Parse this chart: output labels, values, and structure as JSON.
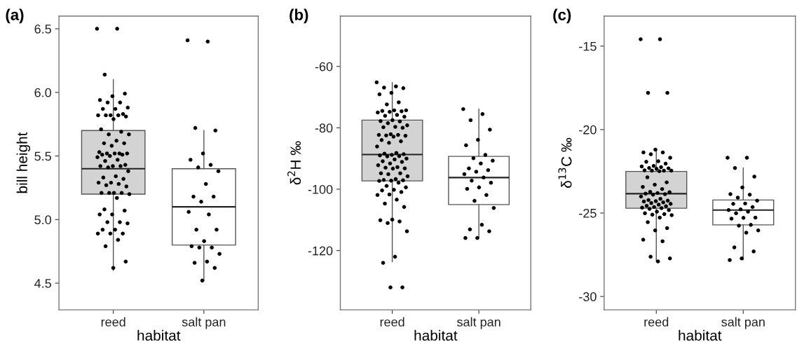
{
  "chart_data": [
    {
      "type": "box",
      "title": "(a)",
      "xlabel": "habitat",
      "ylabel": "bill height",
      "categories": [
        "reed",
        "salt pan"
      ],
      "colors": [
        "#d3d3d3",
        "#ffffff"
      ],
      "boxes": [
        {
          "low": 4.6,
          "q1": 5.2,
          "median": 5.4,
          "q3": 5.7,
          "high": 6.1
        },
        {
          "low": 4.52,
          "q1": 4.8,
          "median": 5.1,
          "q3": 5.4,
          "high": 5.7
        }
      ],
      "ylim": [
        4.29,
        6.6
      ],
      "yticks": [
        4.5,
        {
          "value": 5,
          "label": "5.0"
        },
        5.5,
        {
          "value": 6,
          "label": "6.0"
        },
        6.5
      ],
      "grid": false,
      "series": [
        {
          "type": "scatter",
          "color": "#000000",
          "x": [
            "reed",
            "reed",
            "reed",
            "reed",
            "reed",
            "reed",
            "reed",
            "reed",
            "reed",
            "reed",
            "reed",
            "reed",
            "reed",
            "reed",
            "reed",
            "reed",
            "reed",
            "reed",
            "reed",
            "reed",
            "reed",
            "reed",
            "reed",
            "reed",
            "reed",
            "reed",
            "reed",
            "reed",
            "reed",
            "reed",
            "reed",
            "reed",
            "reed",
            "reed",
            "reed",
            "reed",
            "reed",
            "reed",
            "reed",
            "reed",
            "reed",
            "reed",
            "reed",
            "reed",
            "reed",
            "reed",
            "reed",
            "reed",
            "reed",
            "reed",
            "reed",
            "reed",
            "reed",
            "reed",
            "reed",
            "reed",
            "reed",
            "reed",
            "reed",
            "reed",
            "reed",
            "reed",
            "reed",
            "reed",
            "reed",
            "reed",
            "reed",
            "reed",
            "reed",
            "reed",
            "reed",
            "reed",
            "reed"
          ],
          "values": [
            6.5,
            6.5,
            6.14,
            5.99,
            5.97,
            5.94,
            5.92,
            5.92,
            5.88,
            5.87,
            5.87,
            5.83,
            5.82,
            5.82,
            5.82,
            5.82,
            5.81,
            5.79,
            5.71,
            5.69,
            5.67,
            5.67,
            5.62,
            5.6,
            5.6,
            5.58,
            5.53,
            5.52,
            5.52,
            5.52,
            5.52,
            5.51,
            5.51,
            5.5,
            5.49,
            5.47,
            5.46,
            5.43,
            5.42,
            5.42,
            5.42,
            5.41,
            5.38,
            5.34,
            5.33,
            5.32,
            5.29,
            5.29,
            5.28,
            5.27,
            5.26,
            5.21,
            5.21,
            5.21,
            5.21,
            5.2,
            5.17,
            5.08,
            5.07,
            5.04,
            5.04,
            4.98,
            4.98,
            4.97,
            4.92,
            4.92,
            4.89,
            4.89,
            4.89,
            4.84,
            4.79,
            4.67,
            4.62
          ]
        },
        {
          "type": "scatter",
          "color": "#000000",
          "x": [
            "salt pan",
            "salt pan",
            "salt pan",
            "salt pan",
            "salt pan",
            "salt pan",
            "salt pan",
            "salt pan",
            "salt pan",
            "salt pan",
            "salt pan",
            "salt pan",
            "salt pan",
            "salt pan",
            "salt pan",
            "salt pan",
            "salt pan",
            "salt pan",
            "salt pan",
            "salt pan",
            "salt pan",
            "salt pan",
            "salt pan",
            "salt pan",
            "salt pan",
            "salt pan"
          ],
          "values": [
            6.41,
            6.4,
            5.72,
            5.7,
            5.52,
            5.47,
            5.43,
            5.41,
            5.38,
            5.28,
            5.18,
            5.18,
            5.14,
            5.06,
            5.04,
            4.92,
            4.92,
            4.83,
            4.79,
            4.78,
            4.78,
            4.73,
            4.67,
            4.66,
            4.62,
            4.52
          ]
        }
      ]
    },
    {
      "type": "box",
      "title": "(b)",
      "xlabel": "habitat",
      "ylabel": "δ$^{2}$H ‰",
      "categories": [
        "reed",
        "salt pan"
      ],
      "colors": [
        "#d3d3d3",
        "#ffffff"
      ],
      "boxes": [
        {
          "low": -123.6,
          "q1": -97.3,
          "median": -88.7,
          "q3": -77.5,
          "high": -65.3
        },
        {
          "low": -115.9,
          "q1": -105.0,
          "median": -96.2,
          "q3": -89.3,
          "high": -73.9
        }
      ],
      "ylim": [
        -139.3,
        -43.6
      ],
      "yticks": [
        -120,
        -100,
        -80,
        -60
      ],
      "grid": false,
      "series": [
        {
          "type": "scatter",
          "color": "#000000",
          "x": [
            "reed",
            "reed",
            "reed",
            "reed",
            "reed",
            "reed",
            "reed",
            "reed",
            "reed",
            "reed",
            "reed",
            "reed",
            "reed",
            "reed",
            "reed",
            "reed",
            "reed",
            "reed",
            "reed",
            "reed",
            "reed",
            "reed",
            "reed",
            "reed",
            "reed",
            "reed",
            "reed",
            "reed",
            "reed",
            "reed",
            "reed",
            "reed",
            "reed",
            "reed",
            "reed",
            "reed",
            "reed",
            "reed",
            "reed",
            "reed",
            "reed",
            "reed",
            "reed",
            "reed",
            "reed",
            "reed",
            "reed",
            "reed",
            "reed",
            "reed",
            "reed",
            "reed",
            "reed",
            "reed",
            "reed",
            "reed",
            "reed",
            "reed",
            "reed",
            "reed",
            "reed",
            "reed",
            "reed",
            "reed",
            "reed",
            "reed",
            "reed",
            "reed",
            "reed",
            "reed",
            "reed",
            "reed",
            "reed",
            "reed",
            "reed",
            "reed",
            "reed",
            "reed",
            "reed",
            "reed",
            "reed"
          ],
          "values": [
            -65.2,
            -66.5,
            -66.9,
            -67.1,
            -68.6,
            -69.1,
            -71.7,
            -72.4,
            -74.3,
            -74.3,
            -74.5,
            -74.6,
            -74.8,
            -75.0,
            -75.8,
            -76.1,
            -76.4,
            -77.5,
            -77.8,
            -77.9,
            -78.5,
            -79.2,
            -79.7,
            -79.8,
            -80.0,
            -82.1,
            -82.3,
            -82.3,
            -82.5,
            -82.6,
            -82.9,
            -84.0,
            -84.4,
            -84.9,
            -86.1,
            -88.2,
            -88.4,
            -88.6,
            -88.8,
            -89.0,
            -89.2,
            -89.3,
            -90.0,
            -90.3,
            -90.9,
            -91.1,
            -91.6,
            -92.2,
            -92.8,
            -93.0,
            -93.2,
            -93.3,
            -94.8,
            -94.8,
            -95.1,
            -95.8,
            -96.7,
            -97.0,
            -97.1,
            -97.2,
            -97.3,
            -97.9,
            -98.9,
            -99.4,
            -100.2,
            -100.4,
            -100.9,
            -101.7,
            -101.9,
            -103.4,
            -104.7,
            -105.8,
            -109.9,
            -110.1,
            -110.5,
            -111.0,
            -113.7,
            -122.0,
            -124.0,
            -132.0,
            -132.0
          ]
        },
        {
          "type": "scatter",
          "color": "#000000",
          "x": [
            "salt pan",
            "salt pan",
            "salt pan",
            "salt pan",
            "salt pan",
            "salt pan",
            "salt pan",
            "salt pan",
            "salt pan",
            "salt pan",
            "salt pan",
            "salt pan",
            "salt pan",
            "salt pan",
            "salt pan",
            "salt pan",
            "salt pan",
            "salt pan",
            "salt pan",
            "salt pan",
            "salt pan",
            "salt pan",
            "salt pan",
            "salt pan",
            "salt pan",
            "salt pan",
            "salt pan"
          ],
          "values": [
            -73.9,
            -75.5,
            -77.5,
            -80.6,
            -83.9,
            -85.7,
            -88.8,
            -89.9,
            -90.7,
            -91.6,
            -93.2,
            -93.8,
            -94.3,
            -95.1,
            -96.2,
            -97.2,
            -97.9,
            -99.4,
            -99.9,
            -101.9,
            -103.8,
            -106.1,
            -111.6,
            -113.1,
            -113.7,
            -115.9,
            -115.9
          ]
        }
      ]
    },
    {
      "type": "box",
      "title": "(c)",
      "xlabel": "habitat",
      "ylabel": "δ$^{13}$C ‰",
      "categories": [
        "reed",
        "salt pan"
      ],
      "colors": [
        "#d3d3d3",
        "#ffffff"
      ],
      "boxes": [
        {
          "low": -27.9,
          "q1": -24.71,
          "median": -23.84,
          "q3": -22.51,
          "high": -21.2
        },
        {
          "low": -27.8,
          "q1": -25.71,
          "median": -24.82,
          "q3": -24.22,
          "high": -22.3
        }
      ],
      "ylim": [
        -30.8,
        -13.2
      ],
      "yticks": [
        -30,
        -25,
        -20,
        -15
      ],
      "grid": false,
      "series": [
        {
          "type": "scatter",
          "color": "#000000",
          "x": [
            "reed",
            "reed",
            "reed",
            "reed",
            "reed",
            "reed",
            "reed",
            "reed",
            "reed",
            "reed",
            "reed",
            "reed",
            "reed",
            "reed",
            "reed",
            "reed",
            "reed",
            "reed",
            "reed",
            "reed",
            "reed",
            "reed",
            "reed",
            "reed",
            "reed",
            "reed",
            "reed",
            "reed",
            "reed",
            "reed",
            "reed",
            "reed",
            "reed",
            "reed",
            "reed",
            "reed",
            "reed",
            "reed",
            "reed",
            "reed",
            "reed",
            "reed",
            "reed",
            "reed",
            "reed",
            "reed",
            "reed",
            "reed",
            "reed",
            "reed",
            "reed",
            "reed",
            "reed",
            "reed",
            "reed",
            "reed",
            "reed",
            "reed",
            "reed",
            "reed",
            "reed",
            "reed",
            "reed",
            "reed",
            "reed"
          ],
          "values": [
            -14.59,
            -14.59,
            -17.8,
            -17.8,
            -21.2,
            -21.37,
            -21.37,
            -21.48,
            -21.69,
            -21.9,
            -21.93,
            -22.04,
            -22.18,
            -22.21,
            -22.25,
            -22.3,
            -22.32,
            -22.35,
            -22.44,
            -22.46,
            -22.46,
            -22.46,
            -22.49,
            -22.86,
            -23.16,
            -23.3,
            -23.44,
            -23.56,
            -23.73,
            -23.75,
            -23.8,
            -23.84,
            -23.87,
            -23.9,
            -24.01,
            -24.15,
            -24.22,
            -24.26,
            -24.29,
            -24.31,
            -24.36,
            -24.4,
            -24.45,
            -24.5,
            -24.57,
            -24.59,
            -24.64,
            -24.68,
            -24.71,
            -24.75,
            -24.82,
            -24.92,
            -25.01,
            -25.06,
            -25.1,
            -25.13,
            -25.27,
            -25.55,
            -25.9,
            -26.04,
            -26.6,
            -26.69,
            -27.62,
            -27.72,
            -27.9
          ]
        },
        {
          "type": "scatter",
          "color": "#000000",
          "x": [
            "salt pan",
            "salt pan",
            "salt pan",
            "salt pan",
            "salt pan",
            "salt pan",
            "salt pan",
            "salt pan",
            "salt pan",
            "salt pan",
            "salt pan",
            "salt pan",
            "salt pan",
            "salt pan",
            "salt pan",
            "salt pan",
            "salt pan",
            "salt pan",
            "salt pan",
            "salt pan",
            "salt pan",
            "salt pan",
            "salt pan",
            "salt pan",
            "salt pan",
            "salt pan",
            "salt pan"
          ],
          "values": [
            -21.69,
            -21.69,
            -22.3,
            -22.82,
            -23.47,
            -23.87,
            -23.9,
            -24.08,
            -24.26,
            -24.43,
            -24.45,
            -24.64,
            -24.78,
            -24.82,
            -24.92,
            -25.01,
            -25.27,
            -25.29,
            -25.34,
            -25.71,
            -25.76,
            -26.04,
            -26.18,
            -27.06,
            -27.3,
            -27.72,
            -27.82
          ]
        }
      ]
    }
  ]
}
